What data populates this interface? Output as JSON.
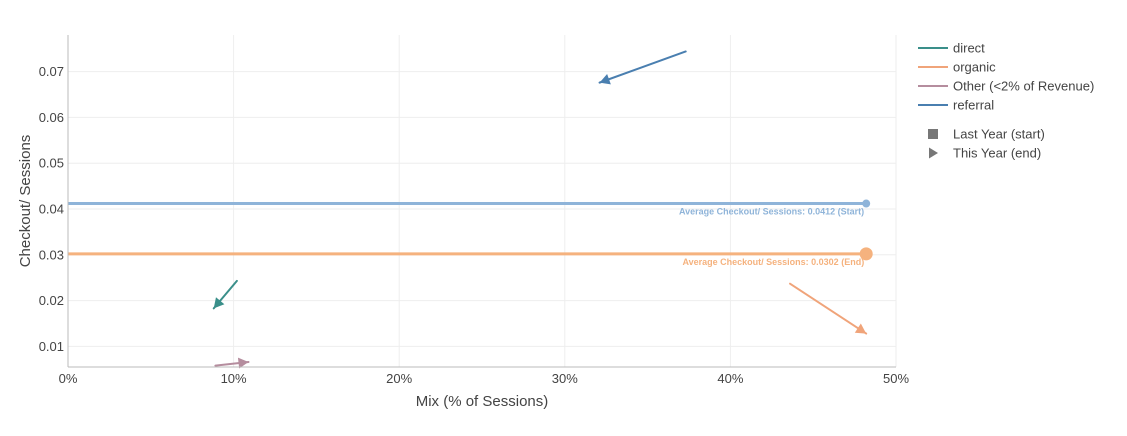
{
  "chart_data": {
    "type": "scatter",
    "xlabel": "Mix (% of Sessions)",
    "ylabel": "Checkout/ Sessions",
    "xlim": [
      0,
      0.5
    ],
    "ylim": [
      0.0055,
      0.078
    ],
    "x_ticks": [
      {
        "value": 0,
        "label": "0%"
      },
      {
        "value": 0.1,
        "label": "10%"
      },
      {
        "value": 0.2,
        "label": "20%"
      },
      {
        "value": 0.3,
        "label": "30%"
      },
      {
        "value": 0.4,
        "label": "40%"
      },
      {
        "value": 0.5,
        "label": "50%"
      }
    ],
    "y_ticks": [
      {
        "value": 0.01,
        "label": "0.01"
      },
      {
        "value": 0.02,
        "label": "0.02"
      },
      {
        "value": 0.03,
        "label": "0.03"
      },
      {
        "value": 0.04,
        "label": "0.04"
      },
      {
        "value": 0.05,
        "label": "0.05"
      },
      {
        "value": 0.06,
        "label": "0.06"
      },
      {
        "value": 0.07,
        "label": "0.07"
      }
    ],
    "series": [
      {
        "name": "direct",
        "color": "#3a8f8a",
        "start": {
          "x": 0.102,
          "y": 0.0243
        },
        "end": {
          "x": 0.088,
          "y": 0.0183
        }
      },
      {
        "name": "organic",
        "color": "#f0a47a",
        "start": {
          "x": 0.436,
          "y": 0.0237
        },
        "end": {
          "x": 0.482,
          "y": 0.0128
        }
      },
      {
        "name": "Other (<2% of Revenue)",
        "color": "#b58d9e",
        "start": {
          "x": 0.089,
          "y": 0.0058
        },
        "end": {
          "x": 0.109,
          "y": 0.0066
        }
      },
      {
        "name": "referral",
        "color": "#4a7fb0",
        "start": {
          "x": 0.373,
          "y": 0.0744
        },
        "end": {
          "x": 0.321,
          "y": 0.0676
        }
      }
    ],
    "reference_lines": [
      {
        "label": "Average Checkout/ Sessions: 0.0412 (Start)",
        "value": 0.0412,
        "color": "#8fb4d9",
        "marker": "start"
      },
      {
        "label": "Average Checkout/ Sessions: 0.0302 (End)",
        "value": 0.0302,
        "color": "#f5b27e",
        "marker": "end"
      }
    ],
    "legend": {
      "position": "right",
      "series_entries": [
        "direct",
        "organic",
        "Other (<2% of Revenue)",
        "referral"
      ],
      "marker_entries": [
        {
          "symbol": "square",
          "label": "Last Year (start)"
        },
        {
          "symbol": "triangle-right",
          "label": "This Year (end)"
        }
      ]
    }
  }
}
